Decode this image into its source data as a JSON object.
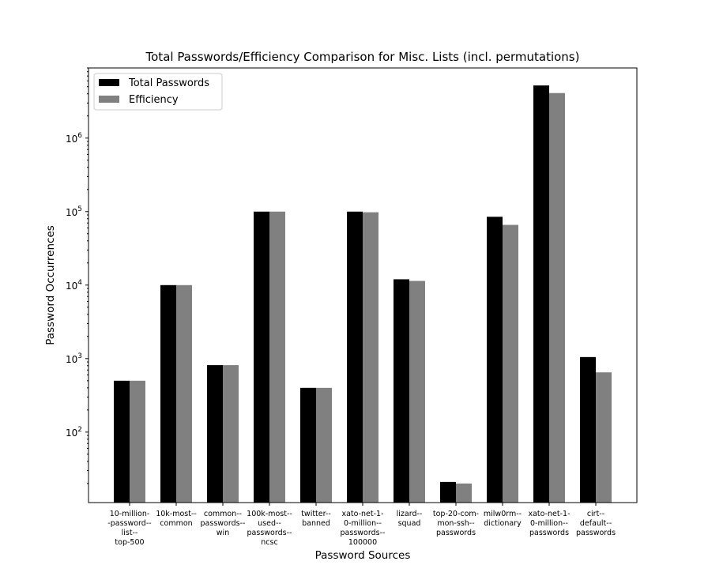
{
  "chart_data": {
    "type": "bar",
    "title": "Total Passwords/Efficiency Comparison for Misc. Lists (incl. permutations)",
    "xlabel": "Password Sources",
    "ylabel": "Password Occurrences",
    "yscale": "log",
    "ylim": [
      11,
      9000000
    ],
    "yticks": [
      {
        "base": "10",
        "exp": "2",
        "value": 100
      },
      {
        "base": "10",
        "exp": "3",
        "value": 1000
      },
      {
        "base": "10",
        "exp": "4",
        "value": 10000
      },
      {
        "base": "10",
        "exp": "5",
        "value": 100000
      },
      {
        "base": "10",
        "exp": "6",
        "value": 1000000
      }
    ],
    "categories": [
      [
        "10-million-",
        "-password--",
        "list--",
        "top-500"
      ],
      [
        "10k-most--",
        "common"
      ],
      [
        "common--",
        "passwords--",
        "win"
      ],
      [
        "100k-most--",
        "used--",
        "passwords--",
        "ncsc"
      ],
      [
        "twitter--",
        "banned"
      ],
      [
        "xato-net-1-",
        "0-million--",
        "passwords--",
        "100000"
      ],
      [
        "lizard--",
        "squad"
      ],
      [
        "top-20-com-",
        "mon-ssh--",
        "passwords"
      ],
      [
        "milw0rm--",
        "dictionary"
      ],
      [
        "xato-net-1-",
        "0-million--",
        "passwords"
      ],
      [
        "cirt--",
        "default--",
        "passwords"
      ]
    ],
    "series": [
      {
        "name": "Total Passwords",
        "color": "#000000",
        "values": [
          500,
          10000,
          815,
          100000,
          400,
          100000,
          12000,
          21,
          85000,
          5200000,
          1050
        ]
      },
      {
        "name": "Efficiency",
        "color": "#808080",
        "values": [
          500,
          10000,
          815,
          100000,
          400,
          98000,
          11400,
          20,
          66000,
          4100000,
          650
        ]
      }
    ],
    "legend": "upper-left",
    "grid": false
  }
}
